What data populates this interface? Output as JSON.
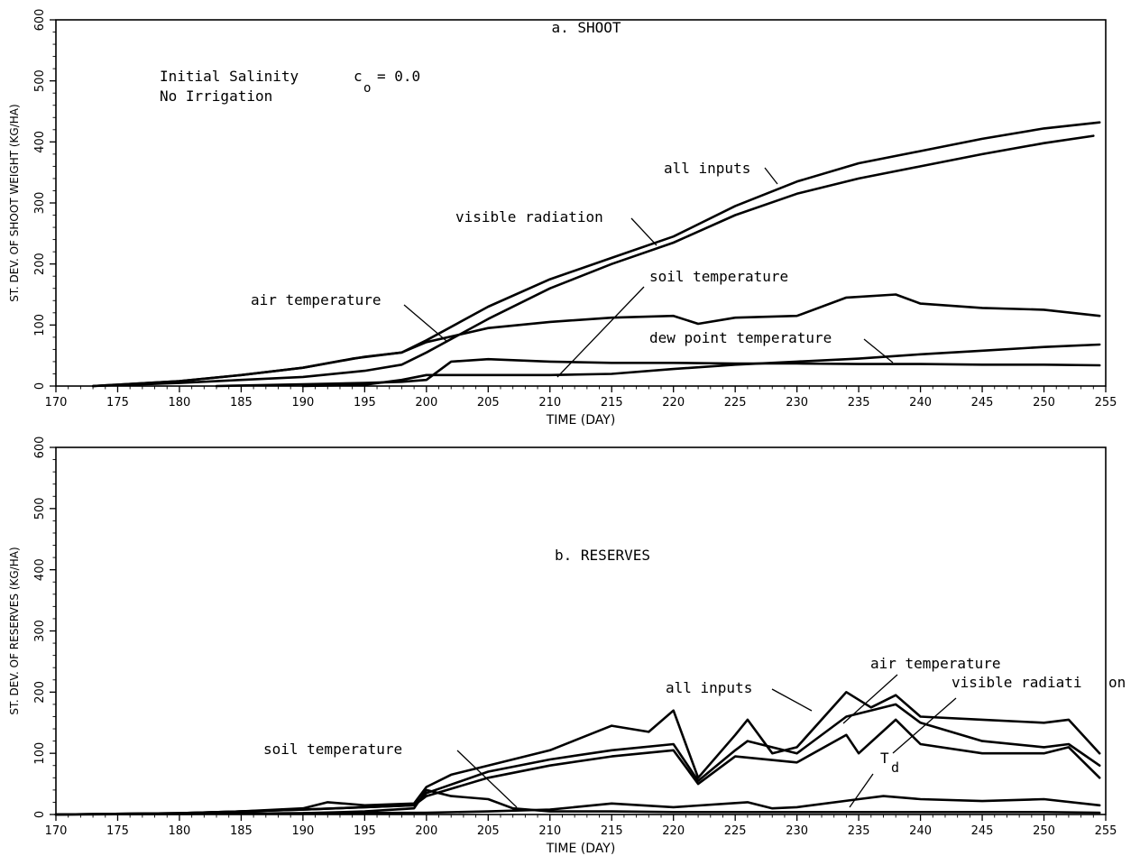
{
  "chart_data": [
    {
      "type": "line",
      "title": "a. SHOOT",
      "xlabel": "TIME (DAY)",
      "ylabel": "ST. DEV. OF SHOOT WEIGHT (KG/HA)",
      "xlim": [
        170,
        255
      ],
      "ylim": [
        0,
        600
      ],
      "xticks": [
        170,
        175,
        180,
        185,
        190,
        195,
        200,
        205,
        210,
        215,
        220,
        225,
        230,
        235,
        240,
        245,
        250,
        255
      ],
      "yticks": [
        0,
        100,
        200,
        300,
        400,
        500,
        600
      ],
      "annotations": {
        "line1": "Initial Salinity",
        "line2": "No Irrigation",
        "c_symbol": "c",
        "c_subscript": "o",
        "c_value": "= 0.0"
      },
      "series": [
        {
          "name": "all inputs",
          "x": [
            173,
            180,
            185,
            190,
            195,
            198,
            200,
            205,
            210,
            215,
            220,
            225,
            230,
            235,
            240,
            245,
            250,
            254.5
          ],
          "y": [
            0,
            8,
            18,
            30,
            48,
            55,
            75,
            130,
            175,
            210,
            245,
            295,
            335,
            365,
            385,
            405,
            422,
            432
          ]
        },
        {
          "name": "visible radiation",
          "x": [
            173,
            180,
            185,
            190,
            195,
            198,
            200,
            205,
            210,
            215,
            220,
            225,
            230,
            235,
            240,
            245,
            250,
            254
          ],
          "y": [
            0,
            5,
            10,
            15,
            25,
            35,
            55,
            110,
            160,
            200,
            235,
            280,
            315,
            340,
            360,
            380,
            398,
            410
          ]
        },
        {
          "name": "air temperature",
          "x": [
            173,
            180,
            185,
            190,
            194,
            198,
            200,
            205,
            210,
            215,
            220,
            222,
            225,
            230,
            234,
            238,
            240,
            245,
            250,
            254.5
          ],
          "y": [
            0,
            8,
            18,
            30,
            45,
            55,
            72,
            95,
            105,
            112,
            115,
            102,
            112,
            115,
            145,
            150,
            135,
            128,
            125,
            115
          ]
        },
        {
          "name": "soil temperature",
          "x": [
            183,
            190,
            195,
            198,
            200,
            202,
            205,
            210,
            215,
            220,
            225,
            230,
            235,
            240,
            245,
            250,
            254.5
          ],
          "y": [
            0,
            3,
            5,
            7,
            10,
            40,
            44,
            40,
            38,
            38,
            37,
            37,
            36,
            36,
            35,
            35,
            34
          ]
        },
        {
          "name": "dew point temperature",
          "x": [
            190,
            195,
            198,
            200,
            205,
            210,
            215,
            220,
            225,
            230,
            235,
            240,
            245,
            250,
            254.5
          ],
          "y": [
            0,
            2,
            10,
            18,
            18,
            18,
            20,
            28,
            35,
            40,
            45,
            52,
            58,
            64,
            68
          ]
        }
      ],
      "labels": [
        {
          "text": "all inputs"
        },
        {
          "text": "visible radiation"
        },
        {
          "text": "soil temperature"
        },
        {
          "text": "air temperature"
        },
        {
          "text": "dew point temperature"
        }
      ]
    },
    {
      "type": "line",
      "title": "b. RESERVES",
      "xlabel": "TIME (DAY)",
      "ylabel": "ST. DEV. OF RESERVES (KG/HA)",
      "xlim": [
        170,
        255
      ],
      "ylim": [
        0,
        600
      ],
      "xticks": [
        170,
        175,
        180,
        185,
        190,
        195,
        200,
        205,
        210,
        215,
        220,
        225,
        230,
        235,
        240,
        245,
        250,
        255
      ],
      "yticks": [
        0,
        100,
        200,
        300,
        400,
        500,
        600
      ],
      "series": [
        {
          "name": "all inputs",
          "x": [
            170,
            180,
            185,
            190,
            192,
            195,
            199,
            200,
            202,
            205,
            210,
            215,
            218,
            220,
            222,
            225,
            226,
            228,
            230,
            234,
            236,
            238,
            240,
            245,
            250,
            252,
            254.5
          ],
          "y": [
            0,
            2,
            5,
            10,
            20,
            15,
            18,
            45,
            65,
            80,
            105,
            145,
            135,
            170,
            60,
            130,
            155,
            100,
            110,
            200,
            175,
            195,
            160,
            155,
            150,
            155,
            100
          ]
        },
        {
          "name": "air temperature",
          "x": [
            170,
            180,
            185,
            190,
            195,
            199,
            200,
            205,
            210,
            215,
            220,
            222,
            225,
            226,
            230,
            234,
            238,
            240,
            245,
            250,
            252,
            254.5
          ],
          "y": [
            0,
            2,
            5,
            8,
            12,
            15,
            35,
            70,
            90,
            105,
            115,
            55,
            105,
            120,
            100,
            160,
            180,
            150,
            120,
            110,
            115,
            80
          ]
        },
        {
          "name": "visible radiation",
          "x": [
            170,
            180,
            185,
            190,
            195,
            199,
            200,
            205,
            210,
            215,
            220,
            222,
            225,
            230,
            234,
            235,
            238,
            240,
            245,
            250,
            252,
            254.5
          ],
          "y": [
            0,
            2,
            5,
            8,
            12,
            15,
            30,
            60,
            80,
            95,
            105,
            50,
            95,
            85,
            130,
            100,
            155,
            115,
            100,
            100,
            110,
            60
          ]
        },
        {
          "name": "soil temperature",
          "x": [
            170,
            190,
            195,
            199,
            200,
            202,
            205,
            207,
            210,
            215,
            220,
            225,
            230,
            235,
            240,
            245,
            250,
            254.5
          ],
          "y": [
            0,
            2,
            5,
            10,
            40,
            30,
            25,
            10,
            5,
            5,
            4,
            4,
            4,
            4,
            4,
            4,
            4,
            3
          ]
        },
        {
          "name": "T_d",
          "x": [
            170,
            190,
            200,
            205,
            210,
            215,
            220,
            226,
            228,
            230,
            235,
            237,
            240,
            245,
            250,
            254.5
          ],
          "y": [
            0,
            2,
            3,
            5,
            8,
            18,
            12,
            20,
            10,
            12,
            25,
            30,
            25,
            22,
            25,
            15
          ]
        }
      ],
      "labels": [
        {
          "text": "air temperature"
        },
        {
          "text": "all inputs"
        },
        {
          "text": "visible radiati"
        },
        {
          "text": "on"
        },
        {
          "text": "soil temperature"
        },
        {
          "text": "T"
        },
        {
          "text": "d"
        }
      ]
    }
  ],
  "colors": {
    "ink": "#000000",
    "background": "#ffffff"
  }
}
